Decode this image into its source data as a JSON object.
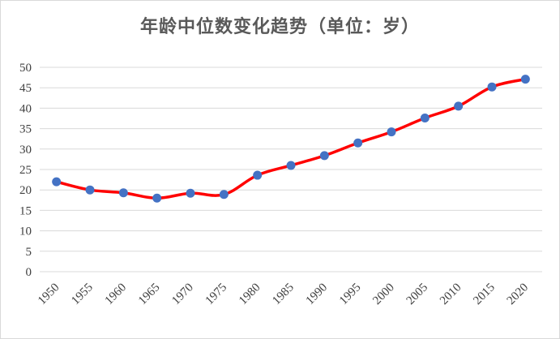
{
  "chart_data": {
    "type": "line",
    "title": "年龄中位数变化趋势（单位：岁）",
    "xlabel": "",
    "ylabel": "",
    "categories": [
      "1950",
      "1955",
      "1960",
      "1965",
      "1970",
      "1975",
      "1980",
      "1985",
      "1990",
      "1995",
      "2000",
      "2005",
      "2010",
      "2015",
      "2020"
    ],
    "series": [
      {
        "values": [
          22.0,
          20.0,
          19.3,
          18.0,
          19.2,
          18.9,
          23.6,
          26.0,
          28.4,
          31.5,
          34.2,
          37.6,
          40.5,
          45.2,
          47.1
        ]
      }
    ],
    "ylim": [
      0,
      50
    ],
    "yticks": [
      "0",
      "5",
      "10",
      "15",
      "20",
      "25",
      "30",
      "35",
      "40",
      "45",
      "50"
    ],
    "grid": true,
    "legend": "none",
    "colors": {
      "line": "#ff0000",
      "marker": "#4472c4",
      "grid": "#d9d9d9",
      "title": "#595959"
    }
  }
}
